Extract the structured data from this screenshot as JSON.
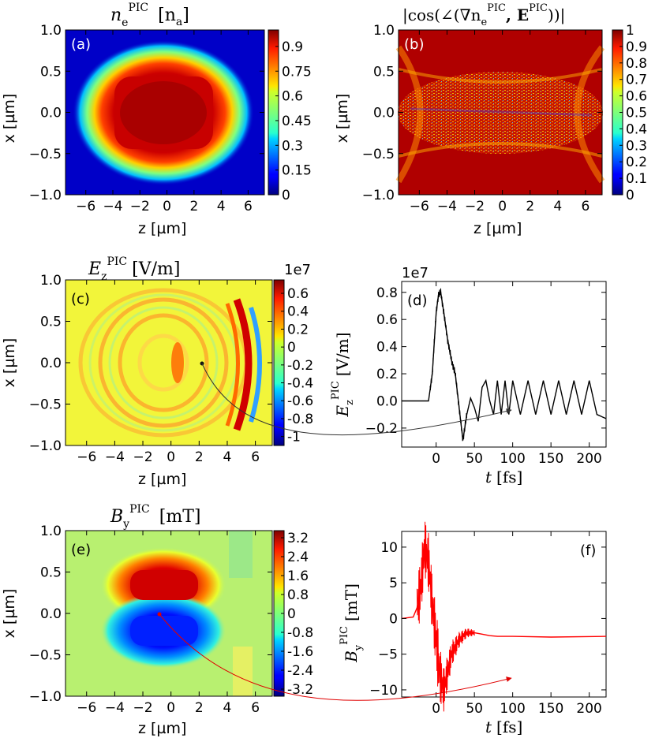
{
  "panels": {
    "a": {
      "tag": "(a)",
      "title_main": "n",
      "title_sub": "e",
      "title_sup": "PIC",
      "title_unit": "[n",
      "title_unit_sub": "a",
      "title_unit_end": "]"
    },
    "b": {
      "tag": "(b)",
      "title": "|cos(∠(∇n",
      "title_sub": "e",
      "title_sup": "PIC",
      "title_mid": ", E",
      "title_sup2": "PIC",
      "title_end": "))|"
    },
    "c": {
      "tag": "(c)",
      "title_main": "E",
      "title_sub": "z",
      "title_sup": "PIC",
      "title_unit": "[V/m]",
      "cbar_exponent": "1e7"
    },
    "d": {
      "tag": "(d)",
      "exponent": "1e7",
      "ylabel_main": "E",
      "ylabel_sub": "z",
      "ylabel_sup": "PIC",
      "ylabel_unit": "[V/m]"
    },
    "e": {
      "tag": "(e)",
      "title_main": "B",
      "title_sub": "y",
      "title_sup": "PIC",
      "title_unit": "[mT]"
    },
    "f": {
      "tag": "(f)",
      "ylabel_main": "B",
      "ylabel_sub": "y",
      "ylabel_sup": "PIC",
      "ylabel_unit": "[mT]"
    }
  },
  "axes": {
    "z_label": "z [µm]",
    "x_label": "x [µm]",
    "t_label": "t",
    "t_unit": "[fs]"
  },
  "chart_data": [
    {
      "id": "a",
      "type": "heatmap",
      "title": "n_e^PIC [n_a]",
      "xlabel": "z [µm]",
      "ylabel": "x [µm]",
      "xlim": [
        -7.5,
        7.2
      ],
      "ylim": [
        -1.0,
        1.0
      ],
      "xticks": [
        "−6",
        "−4",
        "−2",
        "0",
        "2",
        "4",
        "6"
      ],
      "xtick_vals": [
        -6,
        -4,
        -2,
        0,
        2,
        4,
        6
      ],
      "yticks": [
        "1.0",
        "0.5",
        "0.0",
        "−0.5",
        "−1.0"
      ],
      "ytick_vals": [
        1.0,
        0.5,
        0.0,
        -0.5,
        -1.0
      ],
      "colorbar": {
        "range": [
          0,
          1.0
        ],
        "ticks": [
          "0.9",
          "0.75",
          "0.6",
          "0.45",
          "0.3",
          "0.15",
          "0"
        ],
        "tick_vals": [
          0.9,
          0.75,
          0.6,
          0.45,
          0.3,
          0.15,
          0
        ],
        "colormap": "jet"
      },
      "description_values": {
        "core_density": 1.0,
        "core_half_width_z": 2.5,
        "core_half_width_x": 0.45
      }
    },
    {
      "id": "b",
      "type": "heatmap",
      "title": "|cos(∠(∇n_e^PIC, E^PIC))|",
      "xlabel": "z [µm]",
      "ylabel": "x [µm]",
      "xlim": [
        -7.5,
        7.2
      ],
      "ylim": [
        -1.0,
        1.0
      ],
      "xticks": [
        "−6",
        "−4",
        "−2",
        "0",
        "2",
        "4",
        "6"
      ],
      "xtick_vals": [
        -6,
        -4,
        -2,
        0,
        2,
        4,
        6
      ],
      "yticks": [
        "1.0",
        "0.5",
        "0.0",
        "−0.5",
        "−1.0"
      ],
      "ytick_vals": [
        1.0,
        0.5,
        0.0,
        -0.5,
        -1.0
      ],
      "colorbar": {
        "range": [
          0,
          1.0
        ],
        "ticks": [
          "1",
          "0.9",
          "0.8",
          "0.7",
          "0.6",
          "0.5",
          "0.4",
          "0.3",
          "0.2",
          "0.1",
          "0"
        ],
        "tick_vals": [
          1,
          0.9,
          0.8,
          0.7,
          0.6,
          0.5,
          0.4,
          0.3,
          0.2,
          0.1,
          0
        ],
        "colormap": "jet"
      }
    },
    {
      "id": "c",
      "type": "heatmap",
      "title": "E_z^PIC [V/m]",
      "xlabel": "z [µm]",
      "ylabel": "x [µm]",
      "xlim": [
        -7.5,
        7.2
      ],
      "ylim": [
        -1.0,
        1.0
      ],
      "xticks": [
        "−6",
        "−4",
        "−2",
        "0",
        "2",
        "4",
        "6"
      ],
      "xtick_vals": [
        -6,
        -4,
        -2,
        0,
        2,
        4,
        6
      ],
      "yticks": [
        "1.0",
        "0.5",
        "0.0",
        "−0.5",
        "−1.0"
      ],
      "ytick_vals": [
        1.0,
        0.5,
        0.0,
        -0.5,
        -1.0
      ],
      "colorbar": {
        "exponent": "1e7",
        "range": [
          -1.1,
          0.75
        ],
        "ticks": [
          "0.6",
          "0.4",
          "0.2",
          "0",
          "-0.2",
          "-0.4",
          "-0.6",
          "-0.8",
          "-1"
        ],
        "tick_vals": [
          0.6,
          0.4,
          0.2,
          0,
          -0.2,
          -0.4,
          -0.6,
          -0.8,
          -1.0
        ],
        "colormap": "jet"
      },
      "probe_point": {
        "z": 2.8,
        "x": 0.02
      }
    },
    {
      "id": "d",
      "type": "line",
      "title": "",
      "xlabel": "t [fs]",
      "ylabel": "E_z^PIC [V/m]",
      "exponent": "1e7",
      "xlim": [
        -45,
        222
      ],
      "ylim": [
        -0.34,
        0.88
      ],
      "xticks": [
        "0",
        "50",
        "100",
        "150",
        "200"
      ],
      "xtick_vals": [
        0,
        50,
        100,
        150,
        200
      ],
      "yticks": [
        "0.8",
        "0.6",
        "0.4",
        "0.2",
        "0.0",
        "−0.2"
      ],
      "ytick_vals": [
        0.8,
        0.6,
        0.4,
        0.2,
        0.0,
        -0.2
      ],
      "series_color": "#000000",
      "series": [
        {
          "x": [
            -45,
            -10,
            -5,
            0,
            3,
            6,
            10,
            15,
            20,
            25,
            30,
            35,
            40,
            45,
            50,
            55,
            60,
            65,
            70,
            75,
            80,
            85,
            90,
            95,
            100,
            110,
            120,
            130,
            140,
            150,
            160,
            170,
            180,
            190,
            200,
            210,
            222
          ],
          "y": [
            0,
            0,
            0.2,
            0.65,
            0.78,
            0.8,
            0.65,
            0.45,
            0.3,
            0.2,
            -0.05,
            -0.29,
            -0.1,
            0.02,
            -0.05,
            -0.15,
            0.1,
            0.15,
            0.0,
            -0.1,
            0.15,
            -0.1,
            0.15,
            -0.1,
            0.15,
            -0.1,
            0.15,
            -0.1,
            0.15,
            -0.1,
            0.15,
            -0.1,
            0.15,
            -0.1,
            0.15,
            -0.1,
            -0.13
          ]
        }
      ]
    },
    {
      "id": "e",
      "type": "heatmap",
      "title": "B_y^PIC [mT]",
      "xlabel": "z [µm]",
      "ylabel": "x [µm]",
      "xlim": [
        -7.5,
        7.2
      ],
      "ylim": [
        -1.0,
        1.0
      ],
      "xticks": [
        "−6",
        "−4",
        "−2",
        "0",
        "2",
        "4",
        "6"
      ],
      "xtick_vals": [
        -6,
        -4,
        -2,
        0,
        2,
        4,
        6
      ],
      "yticks": [
        "1.0",
        "0.5",
        "0.0",
        "−0.5",
        "−1.0"
      ],
      "ytick_vals": [
        1.0,
        0.5,
        0.0,
        -0.5,
        -1.0
      ],
      "colorbar": {
        "range": [
          -3.5,
          3.5
        ],
        "ticks": [
          "3.2",
          "2.4",
          "1.6",
          "0.8",
          "0",
          "-0.8",
          "-1.6",
          "-2.4",
          "-3.2"
        ],
        "tick_vals": [
          3.2,
          2.4,
          1.6,
          0.8,
          0,
          -0.8,
          -1.6,
          -2.4,
          -3.2
        ],
        "colormap": "jet"
      },
      "probe_point": {
        "z": -0.2,
        "x": -0.28
      }
    },
    {
      "id": "f",
      "type": "line",
      "title": "",
      "xlabel": "t [fs]",
      "ylabel": "B_y^PIC [mT]",
      "xlim": [
        -45,
        222
      ],
      "ylim": [
        -11,
        12.2
      ],
      "xticks": [
        "0",
        "50",
        "100",
        "150",
        "200"
      ],
      "xtick_vals": [
        0,
        50,
        100,
        150,
        200
      ],
      "yticks": [
        "10",
        "5",
        "0",
        "−5",
        "−10"
      ],
      "ytick_vals": [
        10,
        5,
        0,
        -5,
        -10
      ],
      "series_color": "#ff0000",
      "series": [
        {
          "x": [
            -45,
            -30,
            -25,
            -20,
            -15,
            -10,
            -5,
            0,
            5,
            10,
            20,
            30,
            40,
            50,
            60,
            70,
            80,
            90,
            100,
            150,
            222
          ],
          "y": [
            0,
            0.2,
            1.5,
            4.5,
            10,
            8,
            2,
            -3,
            -8,
            -10,
            -5,
            -3,
            -2,
            -2,
            -2.2,
            -2.4,
            -2.5,
            -2.5,
            -2.5,
            -2.6,
            -2.5
          ]
        }
      ]
    }
  ]
}
